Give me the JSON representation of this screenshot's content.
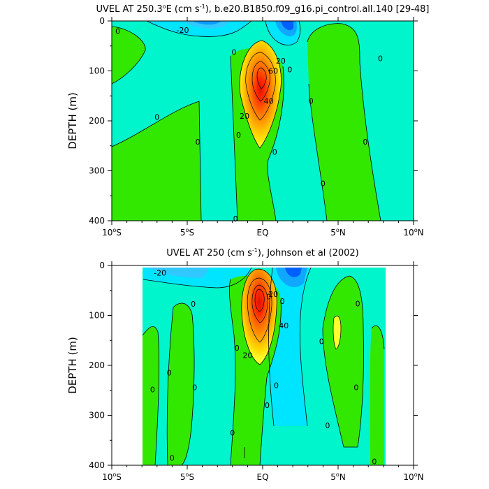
{
  "figure": {
    "colors": {
      "background_level": "#00f5cd",
      "strong_east": "#ff1a00",
      "east_2": "#ff6a00",
      "east_3": "#ffb000",
      "east_4": "#ffe600",
      "east_5": "#ffff30",
      "weak_east": "#33e800",
      "west_1": "#00e5ff",
      "west_2": "#00a0ff",
      "west_3": "#0060ff"
    }
  },
  "chart_data": [
    {
      "type": "heatmap",
      "title_prefix": "UVEL AT 250.3",
      "title_suffix": "E (cm s",
      "title_exp": "-1",
      "title_tail": "), b.e20.B1850.f09_g16.pi_control.all.140 [29-48]",
      "degree_mark": "o",
      "xlabel": "",
      "ylabel": "DEPTH (m)",
      "xlim": [
        -10,
        10
      ],
      "ylim": [
        400,
        0
      ],
      "x_ticks": [
        {
          "value": -10,
          "num": "10",
          "deg": "o",
          "hemi": "S"
        },
        {
          "value": -5,
          "num": "5",
          "deg": "o",
          "hemi": "S"
        },
        {
          "value": 0,
          "num": "EQ",
          "deg": "",
          "hemi": ""
        },
        {
          "value": 5,
          "num": "5",
          "deg": "o",
          "hemi": "N"
        },
        {
          "value": 10,
          "num": "10",
          "deg": "o",
          "hemi": "N"
        }
      ],
      "y_ticks": [
        0,
        100,
        200,
        300,
        400
      ],
      "core": {
        "lat": -0.1,
        "depth": 100,
        "max": 75
      },
      "contour_labels": [
        {
          "text": "-20",
          "lat": -5.3,
          "depth": 18
        },
        {
          "text": "0",
          "lat": -9.6,
          "depth": 20
        },
        {
          "text": "0",
          "lat": -1.9,
          "depth": 62
        },
        {
          "text": "20",
          "lat": 1.2,
          "depth": 80
        },
        {
          "text": "0",
          "lat": 1.8,
          "depth": 97
        },
        {
          "text": "60",
          "lat": 0.7,
          "depth": 100
        },
        {
          "text": "40",
          "lat": 0.4,
          "depth": 160
        },
        {
          "text": "20",
          "lat": -1.2,
          "depth": 190
        },
        {
          "text": "0",
          "lat": -7.0,
          "depth": 192
        },
        {
          "text": "0",
          "lat": 3.2,
          "depth": 160
        },
        {
          "text": "0",
          "lat": 7.8,
          "depth": 75
        },
        {
          "text": "0",
          "lat": -4.3,
          "depth": 242
        },
        {
          "text": "0",
          "lat": -1.6,
          "depth": 228
        },
        {
          "text": "0",
          "lat": 0.8,
          "depth": 262
        },
        {
          "text": "0",
          "lat": 6.8,
          "depth": 242
        },
        {
          "text": "0",
          "lat": 4.0,
          "depth": 325
        },
        {
          "text": "0",
          "lat": -1.8,
          "depth": 396
        }
      ]
    },
    {
      "type": "heatmap",
      "title_prefix": "UVEL AT 250 (cm s",
      "title_exp": "-1",
      "title_tail": "), Johnson et al (2002)",
      "xlabel": "",
      "ylabel": "DEPTH (m)",
      "xlim": [
        -10,
        10
      ],
      "ylim": [
        400,
        0
      ],
      "data_extent_lat": [
        -7.9,
        8.2
      ],
      "data_extent_depth": [
        5,
        400
      ],
      "x_ticks": [
        {
          "value": -10,
          "num": "10",
          "deg": "o",
          "hemi": "S"
        },
        {
          "value": -5,
          "num": "5",
          "deg": "o",
          "hemi": "S"
        },
        {
          "value": 0,
          "num": "EQ",
          "deg": "",
          "hemi": ""
        },
        {
          "value": 5,
          "num": "5",
          "deg": "o",
          "hemi": "N"
        },
        {
          "value": 10,
          "num": "10",
          "deg": "o",
          "hemi": "N"
        }
      ],
      "y_ticks": [
        0,
        100,
        200,
        300,
        400
      ],
      "core": {
        "lat": -0.3,
        "depth": 70,
        "max": 75
      },
      "contour_labels": [
        {
          "text": "-20",
          "lat": -6.8,
          "depth": 15
        },
        {
          "text": "0",
          "lat": -4.6,
          "depth": 77
        },
        {
          "text": "0",
          "lat": 0.4,
          "depth": 62
        },
        {
          "text": "20",
          "lat": 0.7,
          "depth": 57
        },
        {
          "text": "0",
          "lat": 1.3,
          "depth": 71
        },
        {
          "text": "40",
          "lat": 1.4,
          "depth": 120
        },
        {
          "text": "20",
          "lat": -1.0,
          "depth": 180
        },
        {
          "text": "0",
          "lat": -1.7,
          "depth": 165
        },
        {
          "text": "0",
          "lat": -6.2,
          "depth": 215
        },
        {
          "text": "0",
          "lat": -7.3,
          "depth": 248
        },
        {
          "text": "0",
          "lat": -4.5,
          "depth": 244
        },
        {
          "text": "0",
          "lat": 0.9,
          "depth": 240
        },
        {
          "text": "0",
          "lat": 0.3,
          "depth": 280
        },
        {
          "text": "0",
          "lat": 3.9,
          "depth": 152
        },
        {
          "text": "0",
          "lat": 6.3,
          "depth": 76
        },
        {
          "text": "0",
          "lat": 6.2,
          "depth": 244
        },
        {
          "text": "0",
          "lat": 4.3,
          "depth": 320
        },
        {
          "text": "0",
          "lat": -2.0,
          "depth": 335
        },
        {
          "text": "0",
          "lat": -6.0,
          "depth": 385
        },
        {
          "text": "0",
          "lat": 7.4,
          "depth": 392
        }
      ]
    }
  ]
}
